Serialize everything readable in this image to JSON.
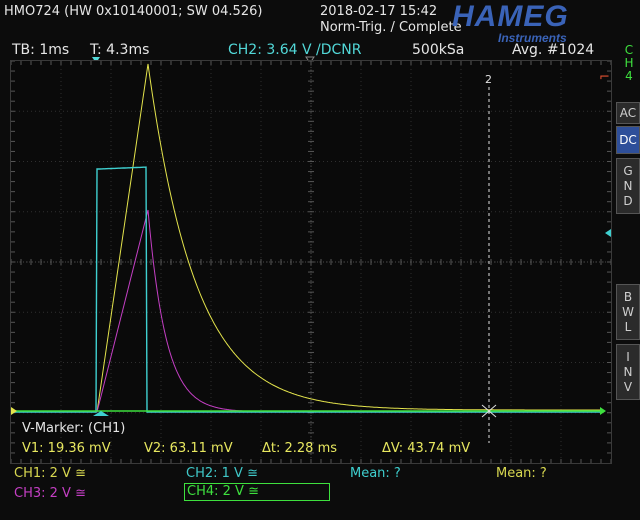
{
  "header": {
    "device_info": "HMO724 (HW 0x10140001; SW 04.526)",
    "datetime": "2018-02-17 15:42",
    "trigger_status": "Norm-Trig. / Complete",
    "logo_main": "HAMEG",
    "logo_sub": "Instruments"
  },
  "status_bar": {
    "timebase": "TB: 1ms",
    "trigger_time": "T: 4.3ms",
    "trigger_level": "CH2: 3.64 V /DCNR",
    "sample_rate": "500kSa",
    "averaging": "Avg. #1024"
  },
  "side_panel": {
    "channel": [
      "C",
      "H",
      "4"
    ],
    "coupling_ac": "AC",
    "coupling_dc": "DC",
    "gnd": [
      "G",
      "N",
      "D"
    ],
    "bwl": [
      "B",
      "W",
      "L"
    ],
    "inv": [
      "I",
      "N",
      "V"
    ]
  },
  "marker": {
    "cursor_number": "2",
    "title": "V-Marker: (CH1)",
    "v1": "V1: 19.36 mV",
    "v2": "V2: 63.11 mV",
    "dt": "Δt: 2.28 ms",
    "dv": "ΔV: 43.74 mV"
  },
  "channels": {
    "ch1": "CH1: 2 V ≅",
    "ch2": "CH2: 1 V ≅",
    "ch3": "CH3: 2 V ≅",
    "ch4": "CH4: 2 V ≅",
    "mean_1": "Mean: ?",
    "mean_2": "Mean: ?"
  },
  "colors": {
    "ch1": "#e4e44c",
    "ch2": "#3fd0d0",
    "ch3": "#c43fc4",
    "ch4": "#3ee03e",
    "accent": "#3a63b8"
  }
}
